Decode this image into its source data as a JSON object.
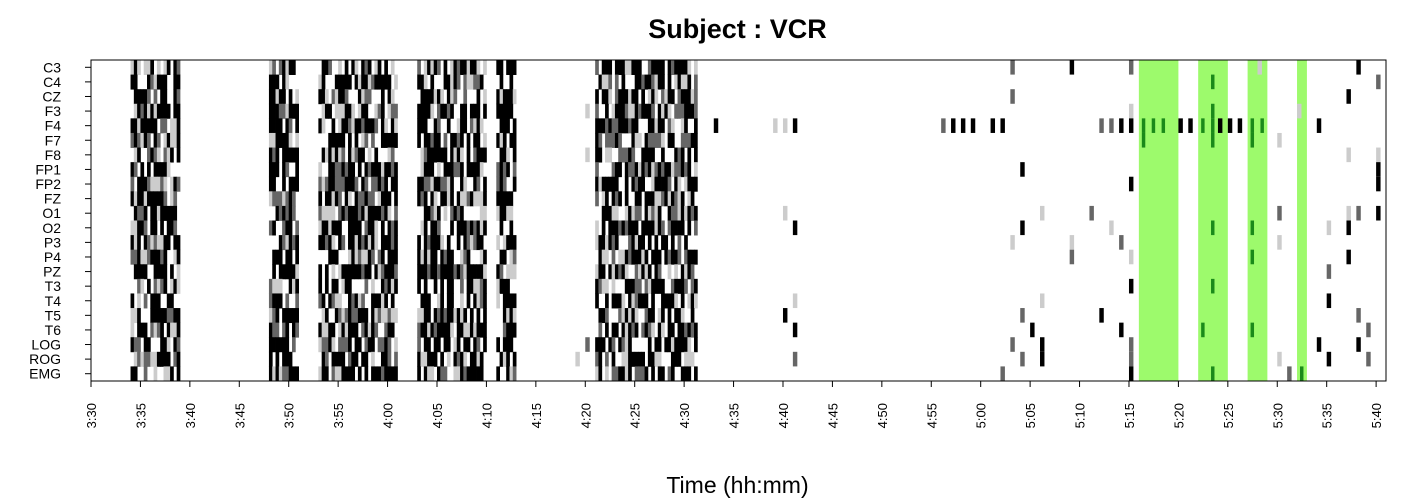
{
  "chart_data": {
    "type": "heatmap",
    "title": "Subject : VCR",
    "xlabel": "Time (hh:mm)",
    "ylabel": "",
    "channels": [
      "C3",
      "C4",
      "CZ",
      "F3",
      "F4",
      "F7",
      "F8",
      "FP1",
      "FP2",
      "FZ",
      "O1",
      "O2",
      "P3",
      "P4",
      "PZ",
      "T3",
      "T4",
      "T5",
      "T6",
      "LOG",
      "ROG",
      "EMG"
    ],
    "x_range_minutes": [
      210,
      341
    ],
    "x_ticks": [
      "3:30",
      "3:35",
      "3:40",
      "3:45",
      "3:50",
      "3:55",
      "4:00",
      "4:05",
      "4:10",
      "4:15",
      "4:20",
      "4:25",
      "4:30",
      "4:35",
      "4:40",
      "4:45",
      "4:50",
      "4:55",
      "5:00",
      "5:05",
      "5:10",
      "5:15",
      "5:20",
      "5:25",
      "5:30",
      "5:35",
      "5:40"
    ],
    "shade_levels": {
      "black": "#000000",
      "darkgray": "#666666",
      "lightgray": "#cccccc"
    },
    "highlight_color": "#9dfa6c",
    "highlight_cell_color": "#1a8a1a",
    "highlight_intervals": [
      [
        "5:16",
        "5:20"
      ],
      [
        "5:22",
        "5:25"
      ],
      [
        "5:27",
        "5:29"
      ],
      [
        "5:32",
        "5:33"
      ]
    ],
    "dense_artifact_intervals": [
      [
        "3:34",
        "3:39"
      ],
      [
        "3:48",
        "3:51"
      ],
      [
        "3:53",
        "4:01"
      ],
      [
        "4:03",
        "4:08"
      ],
      [
        "4:08",
        "4:10"
      ],
      [
        "4:11",
        "4:13"
      ],
      [
        "4:21",
        "4:31"
      ]
    ],
    "sparse_marks": [
      {
        "channel": "C3",
        "time": "5:03",
        "level": "darkgray"
      },
      {
        "channel": "C3",
        "time": "5:09",
        "level": "black"
      },
      {
        "channel": "C3",
        "time": "5:15",
        "level": "darkgray"
      },
      {
        "channel": "C3",
        "time": "5:28",
        "level": "lightgray"
      },
      {
        "channel": "C3",
        "time": "5:38",
        "level": "black"
      },
      {
        "channel": "C4",
        "time": "5:40",
        "level": "darkgray"
      },
      {
        "channel": "CZ",
        "time": "5:03",
        "level": "darkgray"
      },
      {
        "channel": "CZ",
        "time": "5:37",
        "level": "black"
      },
      {
        "channel": "F3",
        "time": "4:20",
        "level": "lightgray"
      },
      {
        "channel": "F3",
        "time": "5:15",
        "level": "lightgray"
      },
      {
        "channel": "F3",
        "time": "5:32",
        "level": "lightgray"
      },
      {
        "channel": "F4",
        "time": "4:33",
        "level": "black"
      },
      {
        "channel": "F4",
        "time": "4:39",
        "level": "lightgray"
      },
      {
        "channel": "F4",
        "time": "4:40",
        "level": "lightgray"
      },
      {
        "channel": "F4",
        "time": "4:41",
        "level": "black"
      },
      {
        "channel": "F4",
        "time": "4:56",
        "level": "darkgray"
      },
      {
        "channel": "F4",
        "time": "4:57",
        "level": "black"
      },
      {
        "channel": "F4",
        "time": "4:58",
        "level": "black"
      },
      {
        "channel": "F4",
        "time": "4:59",
        "level": "black"
      },
      {
        "channel": "F4",
        "time": "5:01",
        "level": "black"
      },
      {
        "channel": "F4",
        "time": "5:02",
        "level": "black"
      },
      {
        "channel": "F4",
        "time": "5:12",
        "level": "darkgray"
      },
      {
        "channel": "F4",
        "time": "5:13",
        "level": "darkgray"
      },
      {
        "channel": "F4",
        "time": "5:14",
        "level": "black"
      },
      {
        "channel": "F4",
        "time": "5:15",
        "level": "black"
      },
      {
        "channel": "F4",
        "time": "5:20",
        "level": "black"
      },
      {
        "channel": "F4",
        "time": "5:21",
        "level": "black"
      },
      {
        "channel": "F4",
        "time": "5:24",
        "level": "black"
      },
      {
        "channel": "F4",
        "time": "5:25",
        "level": "black"
      },
      {
        "channel": "F4",
        "time": "5:26",
        "level": "black"
      },
      {
        "channel": "F4",
        "time": "5:34",
        "level": "black"
      },
      {
        "channel": "F7",
        "time": "5:30",
        "level": "lightgray"
      },
      {
        "channel": "F8",
        "time": "4:20",
        "level": "lightgray"
      },
      {
        "channel": "F8",
        "time": "5:37",
        "level": "lightgray"
      },
      {
        "channel": "F8",
        "time": "5:40",
        "level": "lightgray"
      },
      {
        "channel": "FP1",
        "time": "5:04",
        "level": "black"
      },
      {
        "channel": "FP1",
        "time": "5:40",
        "level": "black"
      },
      {
        "channel": "FP2",
        "time": "5:15",
        "level": "black"
      },
      {
        "channel": "FP2",
        "time": "5:40",
        "level": "black"
      },
      {
        "channel": "O1",
        "time": "4:40",
        "level": "lightgray"
      },
      {
        "channel": "O1",
        "time": "5:06",
        "level": "lightgray"
      },
      {
        "channel": "O1",
        "time": "5:11",
        "level": "darkgray"
      },
      {
        "channel": "O1",
        "time": "5:30",
        "level": "darkgray"
      },
      {
        "channel": "O1",
        "time": "5:37",
        "level": "lightgray"
      },
      {
        "channel": "O1",
        "time": "5:38",
        "level": "darkgray"
      },
      {
        "channel": "O1",
        "time": "5:40",
        "level": "black"
      },
      {
        "channel": "O2",
        "time": "4:41",
        "level": "black"
      },
      {
        "channel": "O2",
        "time": "5:04",
        "level": "black"
      },
      {
        "channel": "O2",
        "time": "5:13",
        "level": "lightgray"
      },
      {
        "channel": "O2",
        "time": "5:35",
        "level": "lightgray"
      },
      {
        "channel": "O2",
        "time": "5:37",
        "level": "black"
      },
      {
        "channel": "P3",
        "time": "5:03",
        "level": "lightgray"
      },
      {
        "channel": "P3",
        "time": "5:09",
        "level": "lightgray"
      },
      {
        "channel": "P3",
        "time": "5:14",
        "level": "darkgray"
      },
      {
        "channel": "P3",
        "time": "5:30",
        "level": "lightgray"
      },
      {
        "channel": "P4",
        "time": "5:09",
        "level": "darkgray"
      },
      {
        "channel": "P4",
        "time": "5:15",
        "level": "lightgray"
      },
      {
        "channel": "P4",
        "time": "5:37",
        "level": "black"
      },
      {
        "channel": "PZ",
        "time": "5:35",
        "level": "darkgray"
      },
      {
        "channel": "T3",
        "time": "5:15",
        "level": "black"
      },
      {
        "channel": "T4",
        "time": "4:41",
        "level": "lightgray"
      },
      {
        "channel": "T4",
        "time": "5:06",
        "level": "lightgray"
      },
      {
        "channel": "T4",
        "time": "5:35",
        "level": "black"
      },
      {
        "channel": "T5",
        "time": "4:40",
        "level": "black"
      },
      {
        "channel": "T5",
        "time": "5:04",
        "level": "darkgray"
      },
      {
        "channel": "T5",
        "time": "5:12",
        "level": "black"
      },
      {
        "channel": "T5",
        "time": "5:38",
        "level": "darkgray"
      },
      {
        "channel": "T6",
        "time": "4:41",
        "level": "black"
      },
      {
        "channel": "T6",
        "time": "5:05",
        "level": "black"
      },
      {
        "channel": "T6",
        "time": "5:14",
        "level": "black"
      },
      {
        "channel": "T6",
        "time": "5:39",
        "level": "darkgray"
      },
      {
        "channel": "LOG",
        "time": "4:20",
        "level": "darkgray"
      },
      {
        "channel": "LOG",
        "time": "5:03",
        "level": "darkgray"
      },
      {
        "channel": "LOG",
        "time": "5:06",
        "level": "black"
      },
      {
        "channel": "LOG",
        "time": "5:15",
        "level": "darkgray"
      },
      {
        "channel": "LOG",
        "time": "5:34",
        "level": "black"
      },
      {
        "channel": "LOG",
        "time": "5:38",
        "level": "black"
      },
      {
        "channel": "ROG",
        "time": "4:19",
        "level": "lightgray"
      },
      {
        "channel": "ROG",
        "time": "4:41",
        "level": "darkgray"
      },
      {
        "channel": "ROG",
        "time": "5:04",
        "level": "darkgray"
      },
      {
        "channel": "ROG",
        "time": "5:06",
        "level": "black"
      },
      {
        "channel": "ROG",
        "time": "5:15",
        "level": "darkgray"
      },
      {
        "channel": "ROG",
        "time": "5:30",
        "level": "lightgray"
      },
      {
        "channel": "ROG",
        "time": "5:35",
        "level": "black"
      },
      {
        "channel": "ROG",
        "time": "5:39",
        "level": "darkgray"
      },
      {
        "channel": "EMG",
        "time": "5:02",
        "level": "darkgray"
      },
      {
        "channel": "EMG",
        "time": "5:15",
        "level": "black"
      },
      {
        "channel": "EMG",
        "time": "5:31",
        "level": "darkgray"
      }
    ],
    "highlight_marks": [
      {
        "channel": "F4",
        "time": "5:16"
      },
      {
        "channel": "F4",
        "time": "5:17"
      },
      {
        "channel": "F4",
        "time": "5:18"
      },
      {
        "channel": "F4",
        "time": "5:22"
      },
      {
        "channel": "F4",
        "time": "5:23"
      },
      {
        "channel": "F4",
        "time": "5:27"
      },
      {
        "channel": "F4",
        "time": "5:28"
      },
      {
        "channel": "F7",
        "time": "5:16"
      },
      {
        "channel": "F7",
        "time": "5:23"
      },
      {
        "channel": "F7",
        "time": "5:27"
      },
      {
        "channel": "O2",
        "time": "5:23"
      },
      {
        "channel": "O2",
        "time": "5:27"
      },
      {
        "channel": "P4",
        "time": "5:27"
      },
      {
        "channel": "T3",
        "time": "5:23"
      },
      {
        "channel": "T6",
        "time": "5:22"
      },
      {
        "channel": "T6",
        "time": "5:27"
      },
      {
        "channel": "EMG",
        "time": "5:23"
      },
      {
        "channel": "EMG",
        "time": "5:32"
      },
      {
        "channel": "C4",
        "time": "5:23"
      },
      {
        "channel": "F3",
        "time": "5:23"
      }
    ]
  }
}
